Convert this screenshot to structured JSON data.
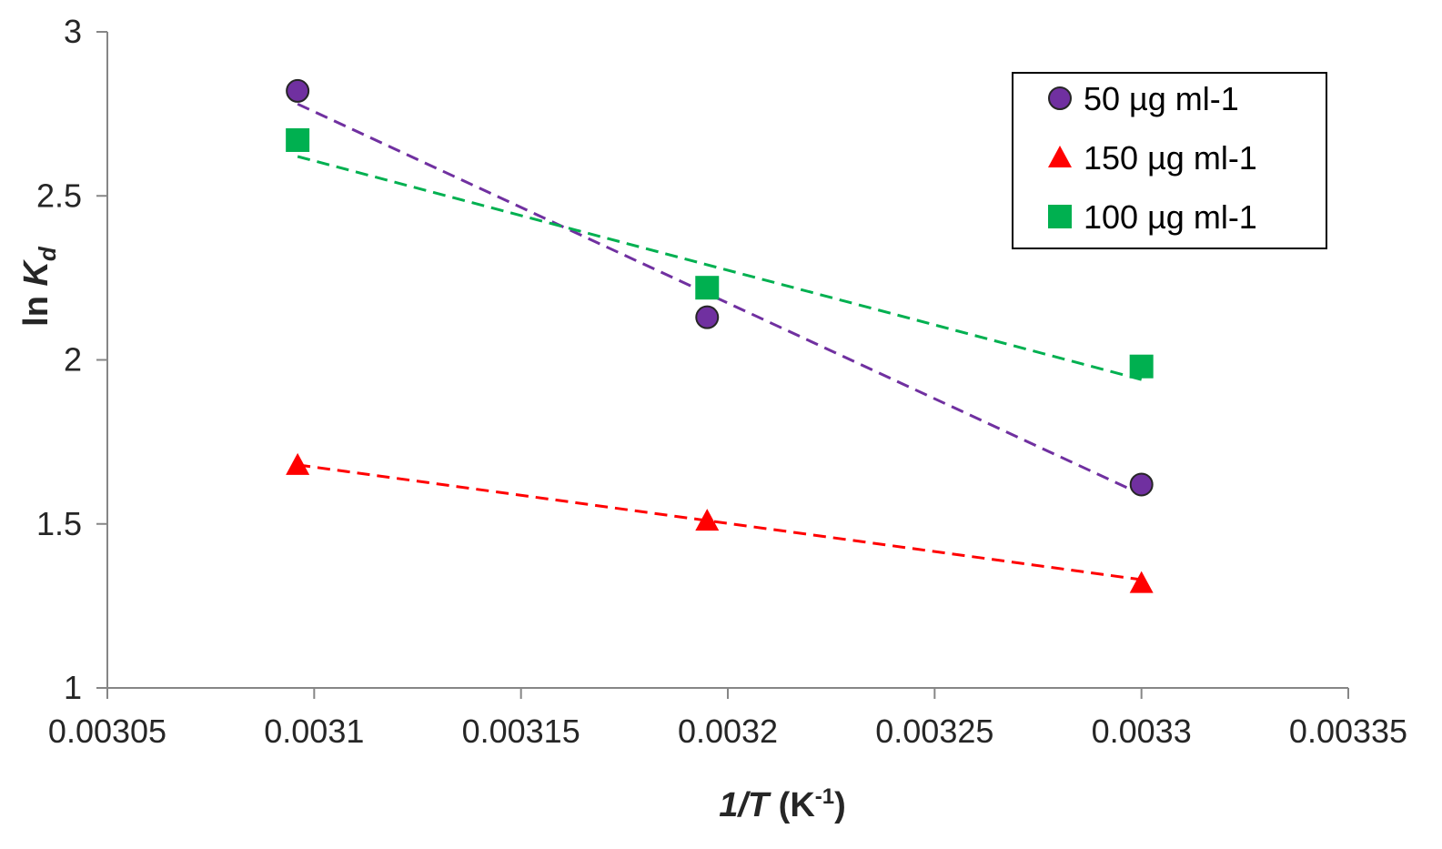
{
  "chart_data": {
    "type": "scatter",
    "title": "",
    "xlabel": {
      "italic": "1/T",
      "plain": " (K",
      "sup": "-1",
      "close": ")"
    },
    "ylabel": {
      "plain": "ln ",
      "italic": "K",
      "sub": "d"
    },
    "xlim": [
      0.00305,
      0.00335
    ],
    "ylim": [
      1,
      3
    ],
    "x_ticks": [
      0.00305,
      0.0031,
      0.00315,
      0.0032,
      0.00325,
      0.0033,
      0.00335
    ],
    "x_tick_labels": [
      "0.00305",
      "0.0031",
      "0.00315",
      "0.0032",
      "0.00325",
      "0.0033",
      "0.00335"
    ],
    "y_ticks": [
      1,
      1.5,
      2,
      2.5,
      3
    ],
    "y_tick_labels": [
      "1",
      "1.5",
      "2",
      "2.5",
      "3"
    ],
    "grid": false,
    "legend_position": "top-right",
    "series": [
      {
        "name": "50 µg ml-1",
        "marker": "circle",
        "color": "#7030a0",
        "x": [
          0.003096,
          0.003195,
          0.0033
        ],
        "y": [
          2.82,
          2.13,
          1.62
        ],
        "trendline": {
          "x": [
            0.003096,
            0.0033
          ],
          "y": [
            2.78,
            1.59
          ]
        }
      },
      {
        "name": "150 µg ml-1",
        "marker": "triangle",
        "color": "#ff0000",
        "x": [
          0.003096,
          0.003195,
          0.0033
        ],
        "y": [
          1.68,
          1.51,
          1.32
        ],
        "trendline": {
          "x": [
            0.003096,
            0.0033
          ],
          "y": [
            1.68,
            1.33
          ]
        }
      },
      {
        "name": "100 µg ml-1",
        "marker": "square",
        "color": "#00b050",
        "x": [
          0.003096,
          0.003195,
          0.0033
        ],
        "y": [
          2.67,
          2.22,
          1.98
        ],
        "trendline": {
          "x": [
            0.003096,
            0.0033
          ],
          "y": [
            2.62,
            1.94
          ]
        }
      }
    ]
  }
}
